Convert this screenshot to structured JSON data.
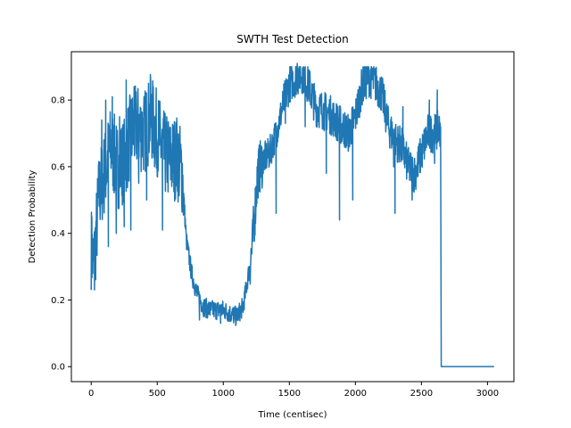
{
  "chart_data": {
    "type": "line",
    "title": "SWTH Test Detection",
    "xlabel": "Time (centisec)",
    "ylabel": "Detection Probability",
    "xlim": [
      -150,
      3200
    ],
    "ylim": [
      -0.045,
      0.945
    ],
    "xticks": [
      0,
      500,
      1000,
      1500,
      2000,
      2500,
      3000
    ],
    "yticks": [
      0.0,
      0.2,
      0.4,
      0.6,
      0.8
    ],
    "ytick_labels": [
      "0.0",
      "0.2",
      "0.4",
      "0.6",
      "0.8"
    ],
    "grid": false,
    "line_color": "#1f77b4",
    "anchors": [
      [
        0,
        0.36
      ],
      [
        20,
        0.3
      ],
      [
        60,
        0.52
      ],
      [
        100,
        0.58
      ],
      [
        150,
        0.66
      ],
      [
        200,
        0.6
      ],
      [
        250,
        0.62
      ],
      [
        300,
        0.7
      ],
      [
        350,
        0.72
      ],
      [
        400,
        0.7
      ],
      [
        450,
        0.75
      ],
      [
        500,
        0.7
      ],
      [
        550,
        0.64
      ],
      [
        600,
        0.62
      ],
      [
        650,
        0.63
      ],
      [
        690,
        0.58
      ],
      [
        720,
        0.38
      ],
      [
        760,
        0.28
      ],
      [
        800,
        0.22
      ],
      [
        850,
        0.18
      ],
      [
        900,
        0.17
      ],
      [
        950,
        0.17
      ],
      [
        1000,
        0.17
      ],
      [
        1050,
        0.16
      ],
      [
        1100,
        0.15
      ],
      [
        1150,
        0.18
      ],
      [
        1180,
        0.25
      ],
      [
        1220,
        0.36
      ],
      [
        1260,
        0.58
      ],
      [
        1300,
        0.62
      ],
      [
        1350,
        0.64
      ],
      [
        1400,
        0.7
      ],
      [
        1450,
        0.78
      ],
      [
        1500,
        0.85
      ],
      [
        1550,
        0.87
      ],
      [
        1600,
        0.88
      ],
      [
        1650,
        0.84
      ],
      [
        1700,
        0.78
      ],
      [
        1750,
        0.77
      ],
      [
        1800,
        0.76
      ],
      [
        1850,
        0.74
      ],
      [
        1900,
        0.72
      ],
      [
        1950,
        0.7
      ],
      [
        2000,
        0.75
      ],
      [
        2050,
        0.84
      ],
      [
        2100,
        0.87
      ],
      [
        2150,
        0.85
      ],
      [
        2200,
        0.82
      ],
      [
        2250,
        0.72
      ],
      [
        2300,
        0.68
      ],
      [
        2350,
        0.66
      ],
      [
        2400,
        0.6
      ],
      [
        2450,
        0.58
      ],
      [
        2500,
        0.64
      ],
      [
        2550,
        0.7
      ],
      [
        2600,
        0.7
      ],
      [
        2645,
        0.72
      ]
    ],
    "spikes": [
      [
        5,
        0.45
      ],
      [
        25,
        0.23
      ],
      [
        55,
        0.6
      ],
      [
        80,
        0.74
      ],
      [
        110,
        0.8
      ],
      [
        130,
        0.36
      ],
      [
        160,
        0.81
      ],
      [
        190,
        0.4
      ],
      [
        215,
        0.75
      ],
      [
        250,
        0.42
      ],
      [
        265,
        0.86
      ],
      [
        300,
        0.41
      ],
      [
        325,
        0.84
      ],
      [
        360,
        0.55
      ],
      [
        400,
        0.81
      ],
      [
        420,
        0.5
      ],
      [
        450,
        0.86
      ],
      [
        480,
        0.6
      ],
      [
        520,
        0.68
      ],
      [
        540,
        0.41
      ],
      [
        560,
        0.75
      ],
      [
        600,
        0.6
      ],
      [
        630,
        0.68
      ],
      [
        700,
        0.52
      ],
      [
        820,
        0.14
      ],
      [
        980,
        0.13
      ],
      [
        1200,
        0.28
      ],
      [
        1240,
        0.41
      ],
      [
        1350,
        0.67
      ],
      [
        1400,
        0.46
      ],
      [
        1470,
        0.73
      ],
      [
        1560,
        0.91
      ],
      [
        1620,
        0.72
      ],
      [
        1710,
        0.72
      ],
      [
        1780,
        0.58
      ],
      [
        1810,
        0.71
      ],
      [
        1880,
        0.44
      ],
      [
        1980,
        0.5
      ],
      [
        2120,
        0.9
      ],
      [
        2250,
        0.76
      ],
      [
        2290,
        0.6
      ],
      [
        2300,
        0.46
      ],
      [
        2360,
        0.78
      ],
      [
        2430,
        0.5
      ],
      [
        2480,
        0.65
      ],
      [
        2560,
        0.8
      ],
      [
        2600,
        0.61
      ],
      [
        2620,
        0.83
      ]
    ],
    "tail": [
      [
        2645,
        0.72
      ],
      [
        2650,
        0.0
      ],
      [
        3050,
        0.0
      ]
    ]
  }
}
